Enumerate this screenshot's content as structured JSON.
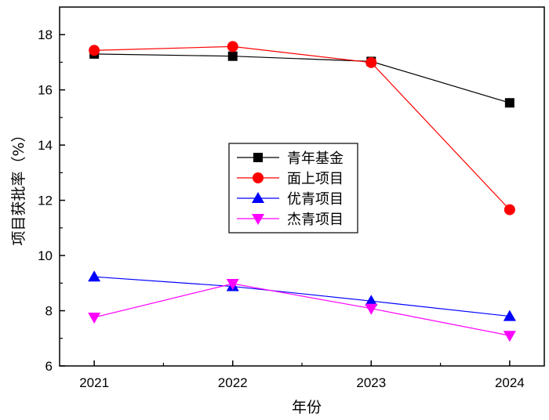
{
  "chart_data": {
    "type": "line",
    "xlabel": "年份",
    "ylabel": "项目获批率（%）",
    "x": [
      2021,
      2022,
      2023,
      2024
    ],
    "x_tick_labels": [
      "2021",
      "2022",
      "2023",
      "2024"
    ],
    "xlim": [
      2020.75,
      2024.25
    ],
    "ylim": [
      6,
      19
    ],
    "y_ticks": [
      6,
      8,
      10,
      12,
      14,
      16,
      18
    ],
    "y_tick_labels": [
      "6",
      "8",
      "10",
      "12",
      "14",
      "16",
      "18"
    ],
    "grid": false,
    "legend_position": "center-right",
    "series": [
      {
        "name": "青年基金",
        "values": [
          17.3,
          17.22,
          17.03,
          15.53
        ],
        "color": "#000000",
        "marker": "square"
      },
      {
        "name": "面上项目",
        "values": [
          17.43,
          17.57,
          16.99,
          11.66
        ],
        "color": "#ff0000",
        "marker": "circle"
      },
      {
        "name": "优青项目",
        "values": [
          9.23,
          8.88,
          8.35,
          7.8
        ],
        "color": "#0000ff",
        "marker": "triangle-up"
      },
      {
        "name": "杰青项目",
        "values": [
          7.76,
          8.98,
          8.08,
          7.1
        ],
        "color": "#ff00ff",
        "marker": "triangle-down"
      }
    ]
  }
}
